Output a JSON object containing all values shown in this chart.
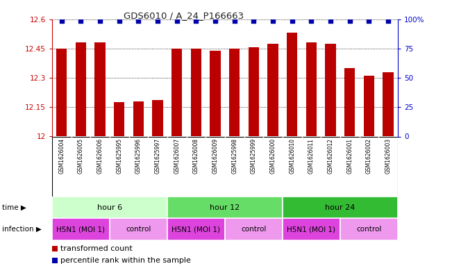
{
  "title": "GDS6010 / A_24_P166663",
  "samples": [
    "GSM1626004",
    "GSM1626005",
    "GSM1626006",
    "GSM1625995",
    "GSM1625996",
    "GSM1625997",
    "GSM1626007",
    "GSM1626008",
    "GSM1626009",
    "GSM1625998",
    "GSM1625999",
    "GSM1626000",
    "GSM1626010",
    "GSM1626011",
    "GSM1626012",
    "GSM1626001",
    "GSM1626002",
    "GSM1626003"
  ],
  "bar_values": [
    12.45,
    12.48,
    12.48,
    12.175,
    12.18,
    12.185,
    12.45,
    12.45,
    12.44,
    12.45,
    12.455,
    12.475,
    12.53,
    12.48,
    12.475,
    12.35,
    12.31,
    12.33
  ],
  "ylim": [
    12.0,
    12.6
  ],
  "yticks": [
    12.0,
    12.15,
    12.3,
    12.45,
    12.6
  ],
  "ytick_labels": [
    "12",
    "12.15",
    "12.3",
    "12.45",
    "12.6"
  ],
  "y2lim": [
    0,
    100
  ],
  "y2ticks": [
    0,
    25,
    50,
    75,
    100
  ],
  "y2tick_labels": [
    "0",
    "25",
    "50",
    "75",
    "100%"
  ],
  "bar_color": "#BB0000",
  "dot_color": "#0000AA",
  "bar_width": 0.55,
  "grid_color": "#000000",
  "time_groups": [
    {
      "label": "hour 6",
      "start": 0,
      "end": 6,
      "color": "#ccffcc"
    },
    {
      "label": "hour 12",
      "start": 6,
      "end": 12,
      "color": "#66dd66"
    },
    {
      "label": "hour 24",
      "start": 12,
      "end": 18,
      "color": "#33bb33"
    }
  ],
  "infection_groups": [
    {
      "label": "H5N1 (MOI 1)",
      "start": 0,
      "end": 3,
      "color": "#dd44dd"
    },
    {
      "label": "control",
      "start": 3,
      "end": 6,
      "color": "#ee99ee"
    },
    {
      "label": "H5N1 (MOI 1)",
      "start": 6,
      "end": 9,
      "color": "#dd44dd"
    },
    {
      "label": "control",
      "start": 9,
      "end": 12,
      "color": "#ee99ee"
    },
    {
      "label": "H5N1 (MOI 1)",
      "start": 12,
      "end": 15,
      "color": "#dd44dd"
    },
    {
      "label": "control",
      "start": 15,
      "end": 18,
      "color": "#ee99ee"
    }
  ],
  "legend_items": [
    {
      "label": "transformed count",
      "color": "#BB0000"
    },
    {
      "label": "percentile rank within the sample",
      "color": "#0000AA"
    }
  ],
  "bg_color": "#ffffff",
  "axis_color_left": "#CC0000",
  "axis_color_right": "#0000CC",
  "label_bg": "#cccccc"
}
